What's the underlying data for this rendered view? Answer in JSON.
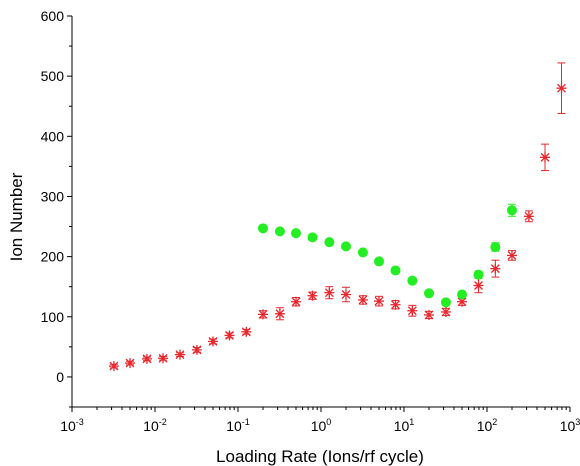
{
  "chart_data": {
    "type": "scatter",
    "xlabel": "Loading Rate (Ions/rf cycle)",
    "ylabel": "Ion Number",
    "x_scale": "log",
    "xlim": [
      0.001,
      1000
    ],
    "ylim": [
      -50,
      600
    ],
    "x_ticks": [
      {
        "base": "10",
        "exp": "-3"
      },
      {
        "base": "10",
        "exp": "-2"
      },
      {
        "base": "10",
        "exp": "-1"
      },
      {
        "base": "10",
        "exp": "0"
      },
      {
        "base": "10",
        "exp": "1"
      },
      {
        "base": "10",
        "exp": "2"
      },
      {
        "base": "10",
        "exp": "3"
      }
    ],
    "y_ticks": [
      "0",
      "100",
      "200",
      "300",
      "400",
      "500",
      "600"
    ],
    "grid": false,
    "series": [
      {
        "marker": "asterisk",
        "color": "#e8272d",
        "points": [
          {
            "x": 0.0032,
            "y": 18,
            "err": 3
          },
          {
            "x": 0.005,
            "y": 23,
            "err": 3
          },
          {
            "x": 0.008,
            "y": 30,
            "err": 3
          },
          {
            "x": 0.0125,
            "y": 31,
            "err": 3
          },
          {
            "x": 0.02,
            "y": 37,
            "err": 3
          },
          {
            "x": 0.032,
            "y": 45,
            "err": 4
          },
          {
            "x": 0.05,
            "y": 59,
            "err": 4
          },
          {
            "x": 0.079,
            "y": 69,
            "err": 4
          },
          {
            "x": 0.126,
            "y": 75,
            "err": 4
          },
          {
            "x": 0.2,
            "y": 104,
            "err": 6
          },
          {
            "x": 0.32,
            "y": 105,
            "err": 10
          },
          {
            "x": 0.5,
            "y": 125,
            "err": 7
          },
          {
            "x": 0.79,
            "y": 135,
            "err": 6
          },
          {
            "x": 1.26,
            "y": 140,
            "err": 10
          },
          {
            "x": 2.0,
            "y": 137,
            "err": 12
          },
          {
            "x": 3.2,
            "y": 128,
            "err": 7
          },
          {
            "x": 5.0,
            "y": 126,
            "err": 8
          },
          {
            "x": 7.9,
            "y": 120,
            "err": 7
          },
          {
            "x": 12.6,
            "y": 110,
            "err": 9
          },
          {
            "x": 20,
            "y": 103,
            "err": 6
          },
          {
            "x": 32,
            "y": 108,
            "err": 6
          },
          {
            "x": 50,
            "y": 125,
            "err": 6
          },
          {
            "x": 79,
            "y": 152,
            "err": 12
          },
          {
            "x": 126,
            "y": 180,
            "err": 14
          },
          {
            "x": 200,
            "y": 202,
            "err": 8
          },
          {
            "x": 320,
            "y": 267,
            "err": 9
          },
          {
            "x": 500,
            "y": 365,
            "err": 22
          },
          {
            "x": 790,
            "y": 480,
            "err": 42
          }
        ]
      },
      {
        "marker": "circle",
        "color": "#22ee22",
        "points": [
          {
            "x": 0.2,
            "y": 247,
            "err": 3
          },
          {
            "x": 0.32,
            "y": 242,
            "err": 3
          },
          {
            "x": 0.5,
            "y": 239,
            "err": 3
          },
          {
            "x": 0.79,
            "y": 232,
            "err": 3
          },
          {
            "x": 1.26,
            "y": 224,
            "err": 3
          },
          {
            "x": 2.0,
            "y": 217,
            "err": 3
          },
          {
            "x": 3.2,
            "y": 207,
            "err": 3
          },
          {
            "x": 5.0,
            "y": 192,
            "err": 4
          },
          {
            "x": 7.9,
            "y": 177,
            "err": 4
          },
          {
            "x": 12.6,
            "y": 160,
            "err": 4
          },
          {
            "x": 20,
            "y": 139,
            "err": 4
          },
          {
            "x": 32,
            "y": 124,
            "err": 4
          },
          {
            "x": 50,
            "y": 137,
            "err": 5
          },
          {
            "x": 79,
            "y": 170,
            "err": 6
          },
          {
            "x": 126,
            "y": 216,
            "err": 7
          },
          {
            "x": 200,
            "y": 277,
            "err": 10
          }
        ]
      }
    ]
  }
}
